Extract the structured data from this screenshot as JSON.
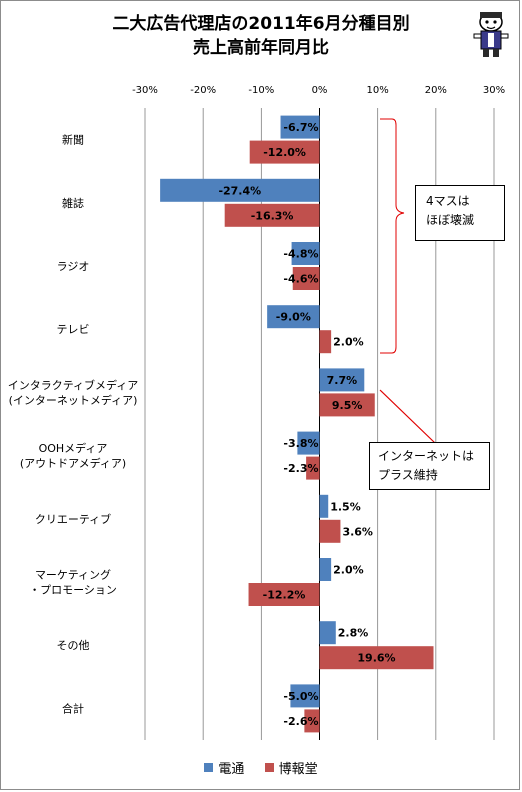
{
  "title_lines": [
    "二大広告代理店の2011年6月分種目別",
    "売上高前年同月比"
  ],
  "callouts": {
    "mass4": [
      "4マスは",
      "ほぼ壊滅"
    ],
    "internet": [
      "インターネットは",
      "プラス維持"
    ]
  },
  "colors": {
    "dentsu": "#4f81bd",
    "hakuhodo": "#c0504d",
    "grid": "#000000",
    "callout_line_red": "#e00000"
  },
  "chart_data": {
    "type": "bar",
    "orientation": "horizontal",
    "title": "二大広告代理店の2011年6月分種目別売上高前年同月比",
    "categories": [
      [
        "新聞"
      ],
      [
        "雑誌"
      ],
      [
        "ラジオ"
      ],
      [
        "テレビ"
      ],
      [
        "インタラクティブメディア",
        "(インターネットメディア)"
      ],
      [
        "OOHメディア",
        "(アウトドアメディア)"
      ],
      [
        "クリエーティブ"
      ],
      [
        "マーケティング",
        "・プロモーション"
      ],
      [
        "その他"
      ],
      [
        "合計"
      ]
    ],
    "series": [
      {
        "name": "電通",
        "color": "#4f81bd",
        "values": [
          -6.7,
          -27.4,
          -4.8,
          -9.0,
          7.7,
          -3.8,
          1.5,
          2.0,
          2.8,
          -5.0
        ]
      },
      {
        "name": "博報堂",
        "color": "#c0504d",
        "values": [
          -12.0,
          -16.3,
          -4.6,
          2.0,
          9.5,
          -2.3,
          3.6,
          -12.2,
          19.6,
          -2.6
        ]
      }
    ],
    "xlim": [
      -30,
      30
    ],
    "xticks": [
      -30,
      -20,
      -10,
      0,
      10,
      20,
      30
    ],
    "tick_suffix": "%",
    "value_format": "1 decimal + %",
    "grid": "vertical lines at each tick",
    "legend": "bottom-center"
  }
}
